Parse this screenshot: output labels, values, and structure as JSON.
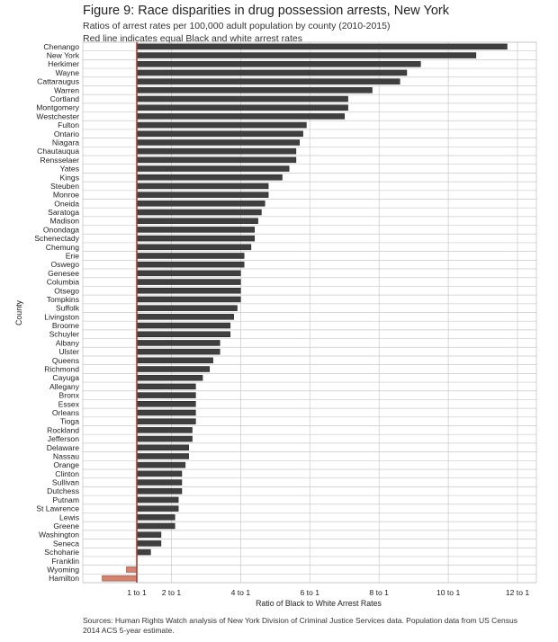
{
  "chart_data": {
    "type": "bar",
    "orientation": "horizontal",
    "title": "Figure 9: Race disparities in drug possession arrests, New York",
    "subtitle": "Ratios of arrest rates per 100,000 adult population by county (2010-2015)",
    "subtitle2": "Red line indicates equal Black and white arrest rates",
    "xlabel": "Ratio of Black to White Arrest Rates",
    "ylabel": "County",
    "source": "Sources: Human Rights Watch analysis of New York Division of Criminal Justice Services data. Population data from US Census 2014 ACS 5-year estimate.",
    "xlim": [
      0,
      12.3
    ],
    "xticks": [
      {
        "value": 1,
        "label": "1 to 1"
      },
      {
        "value": 2,
        "label": "2 to 1"
      },
      {
        "value": 4,
        "label": "4 to 1"
      },
      {
        "value": 6,
        "label": "6 to 1"
      },
      {
        "value": 8,
        "label": "8 to 1"
      },
      {
        "value": 10,
        "label": "10 to 1"
      },
      {
        "value": 12,
        "label": "12 to 1"
      }
    ],
    "reference_line": 1,
    "grid": true,
    "colors": {
      "bar": "#3f3f3f",
      "below_reference": "#d3836f",
      "reference_line": "#b23a2c"
    },
    "categories": [
      "Chenango",
      "New York",
      "Herkimer",
      "Wayne",
      "Cattaraugus",
      "Warren",
      "Cortland",
      "Montgomery",
      "Westchester",
      "Fulton",
      "Ontario",
      "Niagara",
      "Chautauqua",
      "Rensselaer",
      "Yates",
      "Kings",
      "Steuben",
      "Monroe",
      "Oneida",
      "Saratoga",
      "Madison",
      "Onondaga",
      "Schenectady",
      "Chemung",
      "Erie",
      "Oswego",
      "Genesee",
      "Columbia",
      "Otsego",
      "Tompkins",
      "Suffolk",
      "Livingston",
      "Broome",
      "Schuyler",
      "Albany",
      "Ulster",
      "Queens",
      "Richmond",
      "Cayuga",
      "Allegany",
      "Bronx",
      "Essex",
      "Orleans",
      "Tioga",
      "Rockland",
      "Jefferson",
      "Delaware",
      "Nassau",
      "Orange",
      "Clinton",
      "Sullivan",
      "Dutchess",
      "Putnam",
      "St Lawrence",
      "Lewis",
      "Greene",
      "Washington",
      "Seneca",
      "Schoharie",
      "Franklin",
      "Wyoming",
      "Hamilton"
    ],
    "values": [
      11.7,
      10.8,
      9.2,
      8.8,
      8.6,
      7.8,
      7.1,
      7.1,
      7.0,
      5.9,
      5.8,
      5.7,
      5.6,
      5.6,
      5.4,
      5.2,
      4.8,
      4.8,
      4.7,
      4.6,
      4.5,
      4.4,
      4.4,
      4.3,
      4.1,
      4.1,
      4.0,
      4.0,
      4.0,
      4.0,
      3.9,
      3.8,
      3.7,
      3.7,
      3.4,
      3.4,
      3.2,
      3.1,
      2.9,
      2.7,
      2.7,
      2.7,
      2.7,
      2.7,
      2.6,
      2.6,
      2.5,
      2.5,
      2.4,
      2.3,
      2.3,
      2.3,
      2.2,
      2.2,
      2.1,
      2.1,
      1.7,
      1.7,
      1.4,
      1.0,
      0.7,
      0.0
    ]
  }
}
